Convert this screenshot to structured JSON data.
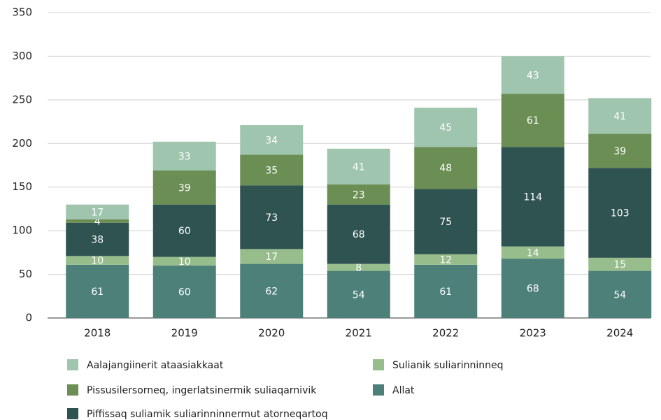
{
  "chart_data": {
    "type": "stacked_bar",
    "categories": [
      "2018",
      "2019",
      "2020",
      "2021",
      "2022",
      "2023",
      "2024"
    ],
    "series": [
      {
        "name": "Allat",
        "color": "#4d8079",
        "values": [
          61,
          60,
          62,
          54,
          61,
          68,
          54
        ]
      },
      {
        "name": "Sulianik suliarinninneq",
        "color": "#97bd8c",
        "values": [
          10,
          10,
          17,
          8,
          12,
          14,
          15
        ]
      },
      {
        "name": "Piffissaq suliamik suliarinninnermut atorneqartoq",
        "color": "#2f5351",
        "values": [
          38,
          60,
          73,
          68,
          75,
          114,
          103
        ]
      },
      {
        "name": "Pissusilersorneq, ingerlatsinermik suliaqarnivik",
        "color": "#6a8e53",
        "values": [
          4,
          39,
          35,
          23,
          48,
          61,
          39
        ]
      },
      {
        "name": "Aalajangiinerit ataasiakkaat",
        "color": "#a0c5ae",
        "values": [
          17,
          33,
          34,
          41,
          45,
          43,
          41
        ]
      }
    ],
    "ylim": [
      0,
      350
    ],
    "yticks": [
      0,
      50,
      100,
      150,
      200,
      250,
      300,
      350
    ],
    "grid": true
  }
}
